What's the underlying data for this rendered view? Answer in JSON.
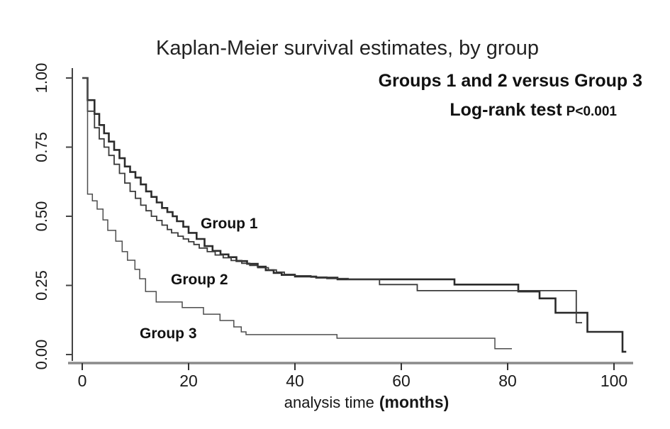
{
  "chart_data": {
    "type": "line",
    "subtype": "kaplan-meier-step-curves",
    "title": "Kaplan-Meier survival estimates, by group",
    "annotation_line1": "Groups 1 and 2 versus Group 3",
    "annotation_line2_prefix": "Log-rank test",
    "annotation_line2_value": "P<0.001",
    "xlabel_regular": "analysis time",
    "xlabel_bold": "(months)",
    "xlim": [
      0,
      104
    ],
    "ylim": [
      0,
      1
    ],
    "xticks": [
      0,
      20,
      40,
      60,
      80,
      100
    ],
    "yticks": [
      "0.00",
      "0.25",
      "0.50",
      "0.75",
      "1.00"
    ],
    "grid": false,
    "legend_position": "inline-curve-labels",
    "axis_color": "#444444",
    "x_axis_bar_color": "#8a8a8a",
    "series": [
      {
        "name": "Group 1",
        "color": "#2b2b2b",
        "stroke_width": 2.6,
        "points": [
          [
            0,
            1.0
          ],
          [
            1,
            0.92
          ],
          [
            2.3,
            0.87
          ],
          [
            3.2,
            0.83
          ],
          [
            4.1,
            0.8
          ],
          [
            5,
            0.77
          ],
          [
            6,
            0.74
          ],
          [
            7,
            0.71
          ],
          [
            8,
            0.68
          ],
          [
            9,
            0.66
          ],
          [
            10,
            0.64
          ],
          [
            11,
            0.615
          ],
          [
            12,
            0.59
          ],
          [
            13,
            0.57
          ],
          [
            14,
            0.55
          ],
          [
            15,
            0.53
          ],
          [
            16,
            0.515
          ],
          [
            17,
            0.5
          ],
          [
            17.8,
            0.482
          ],
          [
            19,
            0.462
          ],
          [
            20,
            0.44
          ],
          [
            21.5,
            0.418
          ],
          [
            23,
            0.392
          ],
          [
            24.5,
            0.375
          ],
          [
            26,
            0.362
          ],
          [
            27.5,
            0.352
          ],
          [
            29,
            0.338
          ],
          [
            31,
            0.328
          ],
          [
            33,
            0.318
          ],
          [
            34.5,
            0.305
          ],
          [
            36,
            0.295
          ],
          [
            37.5,
            0.288
          ],
          [
            40,
            0.282
          ],
          [
            44,
            0.278
          ],
          [
            48,
            0.272
          ],
          [
            70,
            0.253
          ],
          [
            82,
            0.228
          ],
          [
            86,
            0.203
          ],
          [
            89,
            0.151
          ],
          [
            95,
            0.082
          ],
          [
            101.6,
            0.01
          ],
          [
            102.3,
            0.01
          ]
        ]
      },
      {
        "name": "Group 2",
        "color": "#3a3a3a",
        "stroke_width": 1.8,
        "points": [
          [
            0,
            1.0
          ],
          [
            1,
            0.88
          ],
          [
            2.3,
            0.82
          ],
          [
            3.2,
            0.78
          ],
          [
            4.1,
            0.75
          ],
          [
            5,
            0.72
          ],
          [
            6,
            0.688
          ],
          [
            7,
            0.655
          ],
          [
            8,
            0.62
          ],
          [
            9,
            0.59
          ],
          [
            10,
            0.565
          ],
          [
            11,
            0.54
          ],
          [
            12,
            0.52
          ],
          [
            13,
            0.5
          ],
          [
            14,
            0.485
          ],
          [
            15,
            0.468
          ],
          [
            16,
            0.452
          ],
          [
            16.8,
            0.44
          ],
          [
            18,
            0.428
          ],
          [
            19,
            0.418
          ],
          [
            20,
            0.408
          ],
          [
            21,
            0.398
          ],
          [
            22,
            0.385
          ],
          [
            23.5,
            0.372
          ],
          [
            25,
            0.36
          ],
          [
            26.5,
            0.35
          ],
          [
            28,
            0.34
          ],
          [
            30,
            0.33
          ],
          [
            31.5,
            0.322
          ],
          [
            33,
            0.314
          ],
          [
            35,
            0.306
          ],
          [
            36.5,
            0.298
          ],
          [
            38,
            0.29
          ],
          [
            40,
            0.285
          ],
          [
            43,
            0.28
          ],
          [
            46,
            0.275
          ],
          [
            50,
            0.272
          ],
          [
            55.9,
            0.253
          ],
          [
            63,
            0.231
          ],
          [
            92.9,
            0.115
          ],
          [
            94,
            0.115
          ]
        ]
      },
      {
        "name": "Group 3",
        "color": "#4d4d4d",
        "stroke_width": 1.5,
        "points": [
          [
            0,
            1.0
          ],
          [
            1,
            0.58
          ],
          [
            1.9,
            0.556
          ],
          [
            2.8,
            0.526
          ],
          [
            3.9,
            0.487
          ],
          [
            4.8,
            0.449
          ],
          [
            6.3,
            0.41
          ],
          [
            7.5,
            0.372
          ],
          [
            8.5,
            0.341
          ],
          [
            9.9,
            0.308
          ],
          [
            10.8,
            0.274
          ],
          [
            11.9,
            0.228
          ],
          [
            13.9,
            0.19
          ],
          [
            18.8,
            0.17
          ],
          [
            22.8,
            0.146
          ],
          [
            25.9,
            0.123
          ],
          [
            28.5,
            0.1
          ],
          [
            29.9,
            0.082
          ],
          [
            30.8,
            0.072
          ],
          [
            47.9,
            0.059
          ],
          [
            77.6,
            0.021
          ],
          [
            80.8,
            0.021
          ]
        ]
      }
    ]
  }
}
